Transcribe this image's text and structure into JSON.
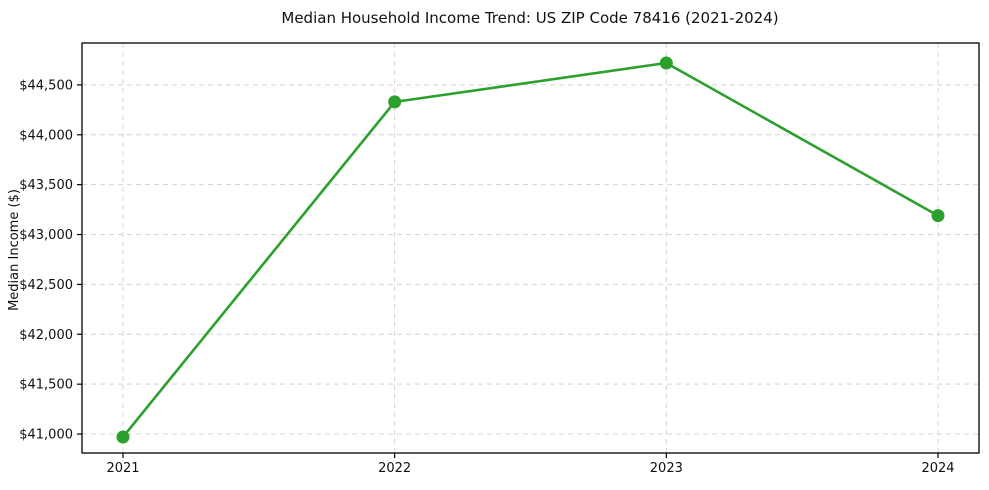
{
  "chart_data": {
    "type": "line",
    "title": "Median Household Income Trend: US ZIP Code 78416 (2021-2024)",
    "xlabel": "",
    "ylabel": "Median Income ($)",
    "x": [
      2021,
      2022,
      2023,
      2024
    ],
    "x_tick_labels": [
      "2021",
      "2022",
      "2023",
      "2024"
    ],
    "series": [
      {
        "values": [
          40970,
          44330,
          44720,
          43190
        ],
        "color": "#2ca02c",
        "marker": "circle",
        "line_width": 2.6,
        "marker_radius": 6.5
      }
    ],
    "ylim": [
      40810,
      44920
    ],
    "yticks": {
      "values": [
        41000,
        41500,
        42000,
        42500,
        43000,
        43500,
        44000,
        44500
      ],
      "labels": [
        "$41,000",
        "$41,500",
        "$42,000",
        "$42,500",
        "$43,000",
        "$43,500",
        "$44,000",
        "$44,500"
      ]
    },
    "grid": true,
    "grid_style": "dashed",
    "legend": "none",
    "colors": {
      "line": "#2ca02c",
      "grid": "#d4d4d4",
      "axis": "#000000",
      "background": "#ffffff",
      "text": "#111111"
    }
  }
}
